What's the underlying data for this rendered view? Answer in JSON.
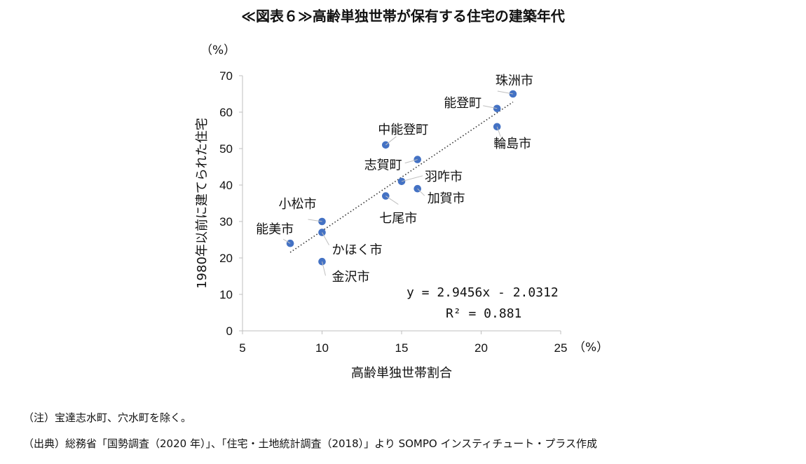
{
  "chart_data": {
    "type": "scatter",
    "title": "≪図表６≫高齢単独世帯が保有する住宅の建築年代",
    "xlabel": "高齢単独世帯割合",
    "ylabel": "1980年以前に建てられた住宅",
    "x_unit": "（%）",
    "y_unit": "（%）",
    "xlim": [
      5,
      25
    ],
    "ylim": [
      0,
      70
    ],
    "xticks": [
      5,
      10,
      15,
      20,
      25
    ],
    "yticks": [
      0,
      10,
      20,
      30,
      40,
      50,
      60,
      70
    ],
    "grid": false,
    "marker_color": "#4472c4",
    "points": [
      {
        "label": "珠洲市",
        "x": 22,
        "y": 65
      },
      {
        "label": "能登町",
        "x": 21,
        "y": 61
      },
      {
        "label": "輪島市",
        "x": 21,
        "y": 56
      },
      {
        "label": "中能登町",
        "x": 14,
        "y": 51
      },
      {
        "label": "志賀町",
        "x": 16,
        "y": 47
      },
      {
        "label": "羽咋市",
        "x": 15,
        "y": 41
      },
      {
        "label": "加賀市",
        "x": 16,
        "y": 39
      },
      {
        "label": "七尾市",
        "x": 14,
        "y": 37
      },
      {
        "label": "小松市",
        "x": 10,
        "y": 30
      },
      {
        "label": "かほく市",
        "x": 10,
        "y": 27
      },
      {
        "label": "能美市",
        "x": 8,
        "y": 24
      },
      {
        "label": "金沢市",
        "x": 10,
        "y": 19
      }
    ],
    "trendline": {
      "slope": 2.9456,
      "intercept": -2.0312,
      "x_range": [
        8,
        22
      ],
      "equation": "y = 2.9456x - 2.0312",
      "r2": "R² = 0.881"
    }
  },
  "notes": [
    "（注）宝達志水町、穴水町を除く。",
    "（出典）総務省「国勢調査（2020 年）」、「住宅・土地統計調査（2018）」より SOMPO インスティチュート・プラス作成"
  ]
}
